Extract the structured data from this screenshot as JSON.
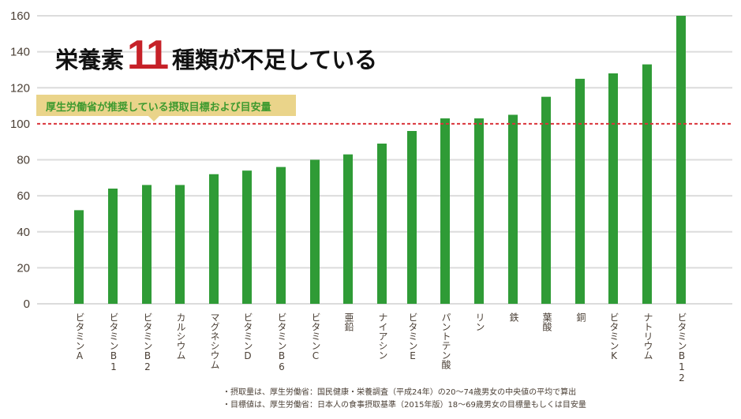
{
  "title": {
    "prefix": "栄養素",
    "number": "11",
    "suffix": "種類が不足している"
  },
  "callout": {
    "text": "厚生労働省が推奨している摂取目標および目安量"
  },
  "notes": [
    "・摂取量は、厚生労働省：国民健康・栄養調査（平成24年）の20〜74歳男女の中央値の平均で算出",
    "・目標値は、厚生労働省：日本人の食事摂取基準（2015年版）18〜69歳男女の目標量もしくは目安量"
  ],
  "colors": {
    "bar": "#2f9b36",
    "reference_line": "#d9343a",
    "grid": "#dcdcdc",
    "title_accent": "#c62128",
    "callout_bg": "#ead48a",
    "callout_text": "#3e9a2f"
  },
  "chart_data": {
    "type": "bar",
    "title": "栄養素11種類が不足している",
    "xlabel": "",
    "ylabel": "",
    "ylim": [
      0,
      160
    ],
    "yticks": [
      0,
      20,
      40,
      60,
      80,
      100,
      120,
      140,
      160
    ],
    "grid": true,
    "reference_line": {
      "value": 100,
      "style": "dashed",
      "label": "厚生労働省が推奨している摂取目標および目安量"
    },
    "categories": [
      "ビタミンA",
      "ビタミンB1",
      "ビタミンB2",
      "カルシウム",
      "マグネシウム",
      "ビタミンD",
      "ビタミンB6",
      "ビタミンC",
      "亜鉛",
      "ナイアシン",
      "ビタミンE",
      "パントテン酸",
      "リン",
      "鉄",
      "葉酸",
      "銅",
      "ビタミンK",
      "ナトリウム",
      "ビタミンB12"
    ],
    "values": [
      52,
      64,
      66,
      66,
      72,
      74,
      76,
      80,
      83,
      89,
      96,
      103,
      103,
      105,
      115,
      125,
      128,
      133,
      160
    ]
  }
}
